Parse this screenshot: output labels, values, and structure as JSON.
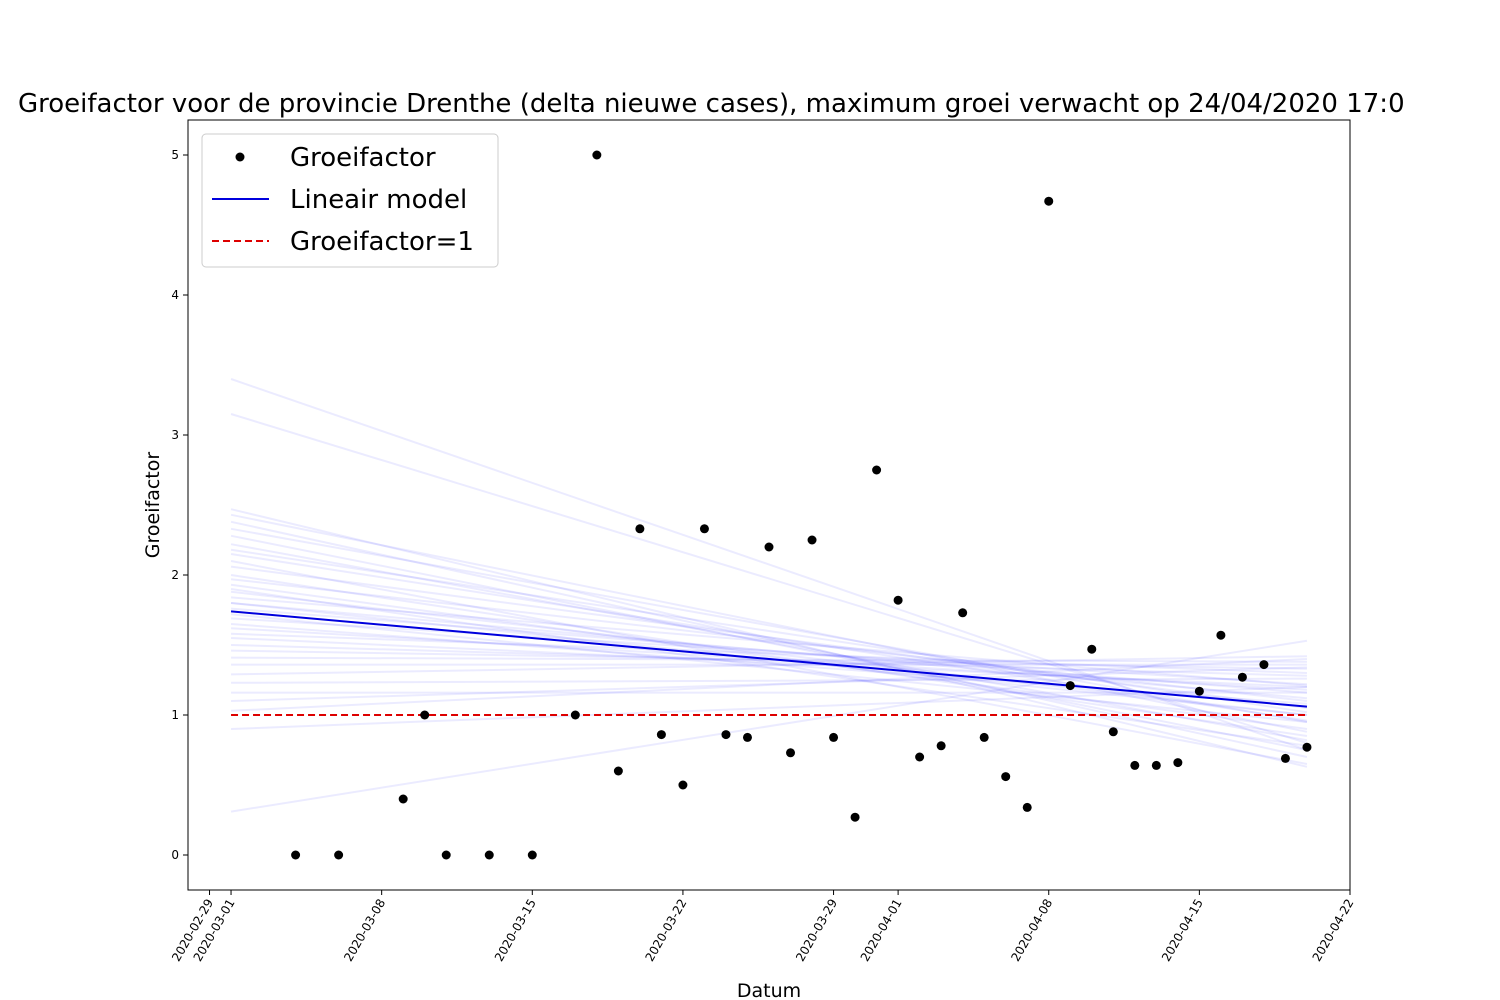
{
  "chart_data": {
    "type": "scatter",
    "title": "Groeifactor voor de provincie Drenthe (delta nieuwe cases), maximum groei verwacht op 24/04/2020 17:0",
    "xlabel": "Datum",
    "ylabel": "Groeifactor",
    "x_range": [
      "2020-02-28",
      "2020-04-22"
    ],
    "ylim": [
      -0.25,
      5.25
    ],
    "x_ticks": [
      "2020-02-29",
      "2020-03-01",
      "2020-03-08",
      "2020-03-15",
      "2020-03-22",
      "2020-03-29",
      "2020-04-01",
      "2020-04-08",
      "2020-04-15",
      "2020-04-22"
    ],
    "y_ticks": [
      0,
      1,
      2,
      3,
      4,
      5
    ],
    "grid": false,
    "legend_position": "top-left",
    "legend": [
      {
        "label": "Groeifactor",
        "kind": "marker",
        "color": "#000000"
      },
      {
        "label": "Lineair model",
        "kind": "line",
        "color": "#0000dd"
      },
      {
        "label": "Groeifactor=1",
        "kind": "dashed",
        "color": "#dd0000"
      }
    ],
    "series": [
      {
        "name": "Groeifactor",
        "kind": "scatter",
        "color": "#000000",
        "points": [
          [
            "2020-03-04",
            0
          ],
          [
            "2020-03-06",
            0
          ],
          [
            "2020-03-09",
            0.4
          ],
          [
            "2020-03-10",
            1.0
          ],
          [
            "2020-03-11",
            0
          ],
          [
            "2020-03-13",
            0
          ],
          [
            "2020-03-15",
            0
          ],
          [
            "2020-03-17",
            1.0
          ],
          [
            "2020-03-18",
            5.0
          ],
          [
            "2020-03-19",
            0.6
          ],
          [
            "2020-03-20",
            2.33
          ],
          [
            "2020-03-21",
            0.86
          ],
          [
            "2020-03-22",
            0.5
          ],
          [
            "2020-03-23",
            2.33
          ],
          [
            "2020-03-24",
            0.86
          ],
          [
            "2020-03-25",
            0.84
          ],
          [
            "2020-03-26",
            2.2
          ],
          [
            "2020-03-27",
            0.73
          ],
          [
            "2020-03-28",
            2.25
          ],
          [
            "2020-03-29",
            0.84
          ],
          [
            "2020-03-30",
            0.27
          ],
          [
            "2020-03-31",
            2.75
          ],
          [
            "2020-04-01",
            1.82
          ],
          [
            "2020-04-02",
            0.7
          ],
          [
            "2020-04-03",
            0.78
          ],
          [
            "2020-04-04",
            1.73
          ],
          [
            "2020-04-05",
            0.84
          ],
          [
            "2020-04-06",
            0.56
          ],
          [
            "2020-04-07",
            0.34
          ],
          [
            "2020-04-08",
            4.67
          ],
          [
            "2020-04-09",
            1.21
          ],
          [
            "2020-04-10",
            1.47
          ],
          [
            "2020-04-11",
            0.88
          ],
          [
            "2020-04-12",
            0.64
          ],
          [
            "2020-04-13",
            0.64
          ],
          [
            "2020-04-14",
            0.66
          ],
          [
            "2020-04-15",
            1.17
          ],
          [
            "2020-04-16",
            1.57
          ],
          [
            "2020-04-17",
            1.27
          ],
          [
            "2020-04-18",
            1.36
          ],
          [
            "2020-04-19",
            0.69
          ],
          [
            "2020-04-20",
            0.77
          ]
        ]
      },
      {
        "name": "Lineair model",
        "kind": "line",
        "color": "#0000dd",
        "points": [
          [
            "2020-03-01",
            1.74
          ],
          [
            "2020-04-20",
            1.06
          ]
        ]
      },
      {
        "name": "Groeifactor=1",
        "kind": "dashed",
        "color": "#dd0000",
        "points": [
          [
            "2020-03-01",
            1.0
          ],
          [
            "2020-04-20",
            1.0
          ]
        ]
      },
      {
        "kind": "bootstrap-lines",
        "color": "#0000ff",
        "opacity": 0.08,
        "x": [
          "2020-03-01",
          "2020-04-20"
        ],
        "lines": [
          [
            3.4,
            0.75
          ],
          [
            3.15,
            0.8
          ],
          [
            0.31,
            1.53
          ],
          [
            2.47,
            0.63
          ],
          [
            2.43,
            0.88
          ],
          [
            2.38,
            0.7
          ],
          [
            2.33,
            0.95
          ],
          [
            2.28,
            0.75
          ],
          [
            2.22,
            0.82
          ],
          [
            2.18,
            1.02
          ],
          [
            2.15,
            0.96
          ],
          [
            2.06,
            1.05
          ],
          [
            1.97,
            1.1
          ],
          [
            1.93,
            0.9
          ],
          [
            1.88,
            1.0
          ],
          [
            1.84,
            1.21
          ],
          [
            1.8,
            1.12
          ],
          [
            1.76,
            1.16
          ],
          [
            1.69,
            1.22
          ],
          [
            1.65,
            1.08
          ],
          [
            1.62,
            1.18
          ],
          [
            1.58,
            1.3
          ],
          [
            1.55,
            1.2
          ],
          [
            1.5,
            1.28
          ],
          [
            1.46,
            1.33
          ],
          [
            1.41,
            1.38
          ],
          [
            1.36,
            1.36
          ],
          [
            1.29,
            1.42
          ],
          [
            1.23,
            1.26
          ],
          [
            1.16,
            1.16
          ],
          [
            1.1,
            1.34
          ],
          [
            1.03,
            1.4
          ],
          [
            0.9,
            1.2
          ],
          [
            2.1,
            0.65
          ],
          [
            1.9,
            0.78
          ],
          [
            1.72,
            0.95
          ],
          [
            2.0,
            0.85
          ],
          [
            1.8,
            1.0
          ]
        ]
      }
    ]
  }
}
